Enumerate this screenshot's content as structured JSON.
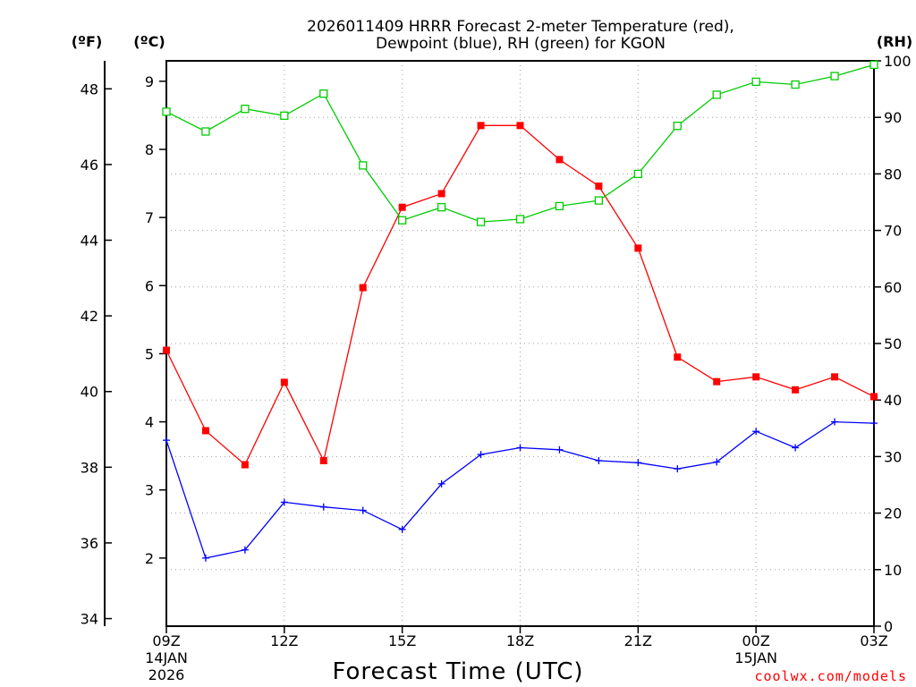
{
  "chart_data": {
    "type": "line",
    "title_line1": "2026011409 HRRR Forecast 2-meter Temperature (red),",
    "title_line2": "Dewpoint (blue), RH (green) for KGON",
    "xlabel": "Forecast Time (UTC)",
    "credit": "coolwx.com/models",
    "unit_f": "(ºF)",
    "unit_c": "(ºC)",
    "unit_rh": "(RH)",
    "x": [
      0,
      1,
      2,
      3,
      4,
      5,
      6,
      7,
      8,
      9,
      10,
      11,
      12,
      13,
      14,
      15,
      16,
      17,
      18
    ],
    "x_ticks": [
      {
        "pos": 0,
        "label": "09Z",
        "sub1": "14JAN",
        "sub2": "2026"
      },
      {
        "pos": 3,
        "label": "12Z",
        "sub1": "",
        "sub2": ""
      },
      {
        "pos": 6,
        "label": "15Z",
        "sub1": "",
        "sub2": ""
      },
      {
        "pos": 9,
        "label": "18Z",
        "sub1": "",
        "sub2": ""
      },
      {
        "pos": 12,
        "label": "21Z",
        "sub1": "",
        "sub2": ""
      },
      {
        "pos": 15,
        "label": "00Z",
        "sub1": "15JAN",
        "sub2": ""
      },
      {
        "pos": 18,
        "label": "03Z",
        "sub1": "",
        "sub2": ""
      }
    ],
    "xlim": [
      0,
      18
    ],
    "ylim_c": [
      1.0,
      9.3
    ],
    "ylim_f": [
      33.8,
      48.74
    ],
    "ylim_rh": [
      0,
      100
    ],
    "y_ticks_c": [
      2,
      3,
      4,
      5,
      6,
      7,
      8,
      9
    ],
    "y_ticks_f": [
      34,
      36,
      38,
      40,
      42,
      44,
      46,
      48
    ],
    "y_ticks_rh": [
      0,
      10,
      20,
      30,
      40,
      50,
      60,
      70,
      80,
      90,
      100
    ],
    "series": [
      {
        "name": "Temperature",
        "units": "C",
        "color": "#ff0000",
        "values": [
          5.05,
          3.87,
          3.37,
          4.58,
          3.43,
          5.97,
          7.15,
          7.35,
          8.35,
          8.35,
          7.85,
          7.46,
          6.55,
          4.95,
          4.59,
          4.66,
          4.47,
          4.66,
          4.37
        ]
      },
      {
        "name": "Dewpoint",
        "units": "C",
        "color": "#0000ff",
        "values": [
          3.73,
          2.0,
          2.12,
          2.82,
          2.75,
          2.7,
          2.42,
          3.09,
          3.52,
          3.62,
          3.59,
          3.43,
          3.4,
          3.31,
          3.41,
          3.86,
          3.62,
          4.0,
          3.98
        ]
      },
      {
        "name": "RH",
        "units": "%",
        "color": "#00cc00",
        "values": [
          91,
          87.5,
          91.5,
          90.3,
          94.2,
          81.5,
          71.8,
          74.1,
          71.5,
          72,
          74.3,
          75.3,
          80,
          88.5,
          94,
          96.3,
          95.8,
          97.3,
          99.3
        ]
      }
    ]
  }
}
